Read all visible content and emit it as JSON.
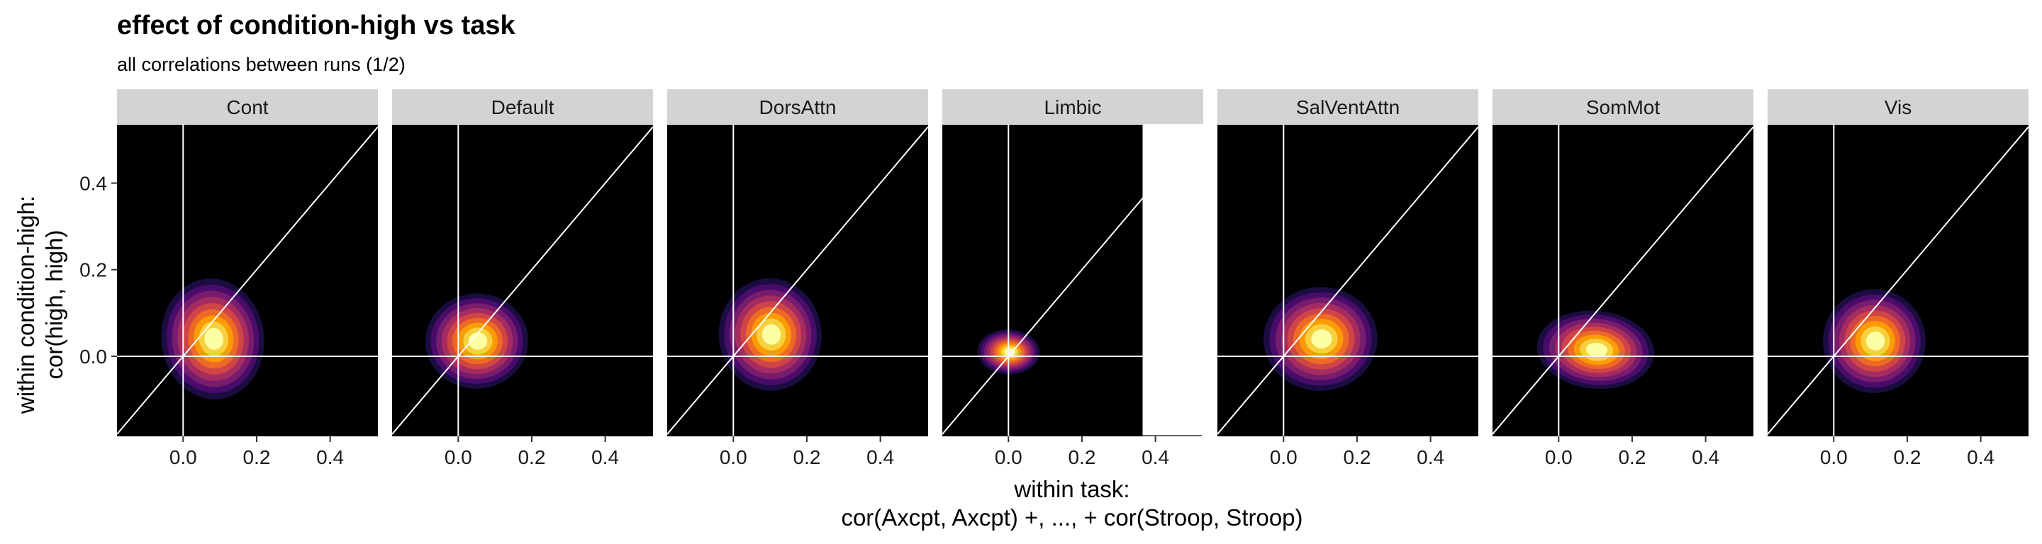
{
  "chart_data": {
    "type": "density-2d-faceted",
    "title": "effect of condition-high vs task",
    "subtitle": "all correlations between runs (1/2)",
    "xlabel_lines": [
      "within task:",
      "cor(Axcpt, Axcpt) +, ..., + cor(Stroop, Stroop)"
    ],
    "ylabel_lines": [
      "within condition-high:",
      "cor(high, high)"
    ],
    "xlim": [
      -0.18,
      0.53
    ],
    "ylim": [
      -0.185,
      0.535
    ],
    "x_ticks": [
      0.0,
      0.2,
      0.4
    ],
    "x_tick_labels": [
      "0.0",
      "0.2",
      "0.4"
    ],
    "y_ticks": [
      0.0,
      0.2,
      0.4
    ],
    "y_tick_labels": [
      "0.0",
      "0.2",
      "0.4"
    ],
    "reference_lines": [
      "x = 0",
      "y = 0",
      "y = x"
    ],
    "grid": false,
    "palette": [
      "#000004",
      "#1b0c41",
      "#4a0c6b",
      "#781c6d",
      "#a52c60",
      "#cf4446",
      "#ed6925",
      "#fb9b06",
      "#f7d13d",
      "#fcffa4"
    ],
    "panel_background": "#000000",
    "strip_background": "#d3d3d3",
    "facets": [
      {
        "label": "Cont",
        "center": [
          0.08,
          0.04
        ],
        "spread": [
          0.14,
          0.14
        ],
        "rho": 0.15
      },
      {
        "label": "Default",
        "center": [
          0.05,
          0.035
        ],
        "spread": [
          0.14,
          0.11
        ],
        "rho": 0.05
      },
      {
        "label": "DorsAttn",
        "center": [
          0.1,
          0.05
        ],
        "spread": [
          0.14,
          0.13
        ],
        "rho": 0.1
      },
      {
        "label": "Limbic",
        "center": [
          0.0,
          0.01
        ],
        "spread": [
          0.085,
          0.052
        ],
        "rho": -0.05,
        "xmax": 0.365
      },
      {
        "label": "SalVentAttn",
        "center": [
          0.1,
          0.04
        ],
        "spread": [
          0.155,
          0.12
        ],
        "rho": 0.05
      },
      {
        "label": "SomMot",
        "center": [
          0.1,
          0.015
        ],
        "spread": [
          0.16,
          0.09
        ],
        "rho": -0.12
      },
      {
        "label": "Vis",
        "center": [
          0.11,
          0.035
        ],
        "spread": [
          0.14,
          0.12
        ],
        "rho": 0.08
      }
    ]
  }
}
